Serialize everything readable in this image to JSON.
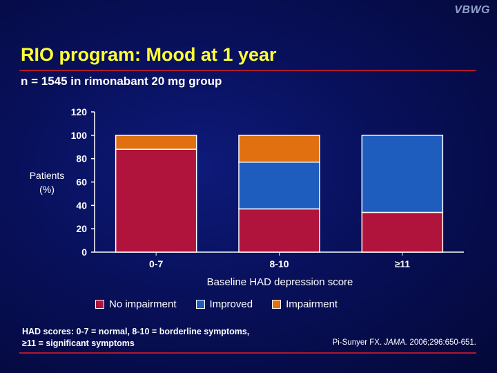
{
  "logo": "VBWG",
  "slide": {
    "title": "RIO program: Mood at 1 year",
    "subtitle": "n = 1545 in rimonabant 20 mg group",
    "footnote_line1": "HAD scores: 0-7 = normal, 8-10 = borderline symptoms,",
    "footnote_line2": "≥11 = significant symptoms",
    "citation_author": "Pi-Sunyer FX. ",
    "citation_journal": "JAMA.",
    "citation_rest": " 2006;296:650-651."
  },
  "colors": {
    "title": "#ffff33",
    "rule": "#b0182e",
    "no_impairment": "#b0143c",
    "improved": "#1e5dbd",
    "impairment": "#e07010"
  },
  "chart_data": {
    "type": "bar",
    "stacked": true,
    "categories": [
      "0-7",
      "8-10",
      "≥11"
    ],
    "series": [
      {
        "name": "No impairment",
        "color": "#b0143c",
        "values": [
          88,
          37,
          34
        ]
      },
      {
        "name": "Improved",
        "color": "#1e5dbd",
        "values": [
          0,
          40,
          66
        ]
      },
      {
        "name": "Impairment",
        "color": "#e07010",
        "values": [
          12,
          23,
          0
        ]
      }
    ],
    "xlabel": "Baseline HAD depression score",
    "ylabel_line1": "Patients",
    "ylabel_line2": "(%)",
    "ylim": [
      0,
      120
    ],
    "yticks": [
      0,
      20,
      40,
      60,
      80,
      100,
      120
    ],
    "grid": false,
    "legend_position": "bottom"
  }
}
